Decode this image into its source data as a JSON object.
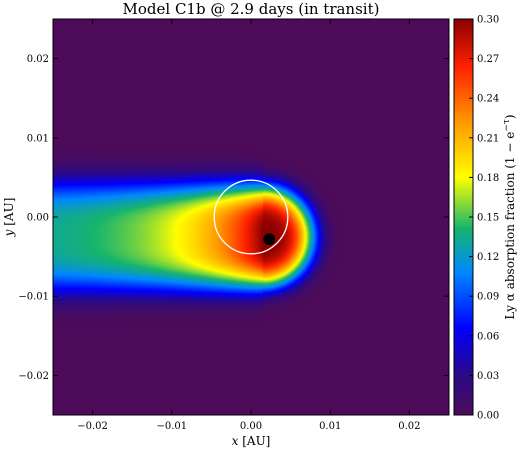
{
  "chart_data": {
    "type": "heatmap",
    "title": "Model C1b @ 2.9 days (in transit)",
    "xlabel_var": "x",
    "xlabel_unit": "[AU]",
    "ylabel_var": "y",
    "ylabel_unit": "[AU]",
    "xlim": [
      -0.025,
      0.025
    ],
    "ylim": [
      -0.025,
      0.025
    ],
    "xticks": [
      -0.02,
      -0.01,
      0.0,
      0.01,
      0.02
    ],
    "xtick_labels": [
      "−0.02",
      "−0.01",
      "0.00",
      "0.01",
      "0.02"
    ],
    "yticks": [
      -0.02,
      -0.01,
      0.0,
      0.01,
      0.02
    ],
    "ytick_labels": [
      "−0.02",
      "−0.01",
      "0.00",
      "0.01",
      "0.02"
    ],
    "colorbar": {
      "label": "Ly α absorption fraction (1 − e",
      "label_exp": "−τ",
      "label_close": ")",
      "colormap": "jet",
      "range": [
        0.0,
        0.3
      ],
      "ticks": [
        0.0,
        0.03,
        0.06,
        0.09,
        0.12,
        0.15,
        0.18,
        0.21,
        0.24,
        0.27,
        0.3
      ],
      "tick_labels": [
        "0.00",
        "0.03",
        "0.06",
        "0.09",
        "0.12",
        "0.15",
        "0.18",
        "0.21",
        "0.24",
        "0.27",
        "0.30"
      ]
    },
    "features": {
      "star_circle": {
        "center": [
          0.0,
          0.0
        ],
        "radius": 0.00465,
        "color": "#ffffff"
      },
      "planet": {
        "center": [
          0.0023,
          -0.0028
        ],
        "radius": 0.00075,
        "color": "#000000"
      },
      "absorption_cloud": {
        "head_peak_value": 0.3,
        "head_center": [
          0.0015,
          -0.0025
        ],
        "tail_direction": "negative-x",
        "tail_value_at_left_edge": 0.12
      }
    },
    "grid": false
  }
}
